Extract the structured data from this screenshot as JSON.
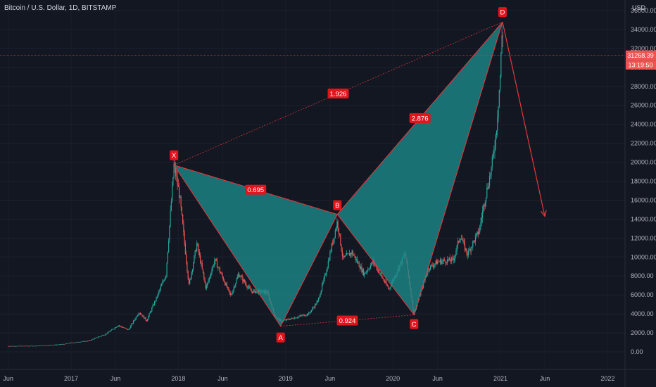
{
  "header": {
    "title": "Bitcoin / U.S. Dollar, 1D, BITSTAMP",
    "currency": "USD"
  },
  "price_axis": {
    "ticks": [
      "0.00",
      "2000.00",
      "4000.00",
      "6000.00",
      "8000.00",
      "10000.00",
      "12000.00",
      "14000.00",
      "16000.00",
      "18000.00",
      "20000.00",
      "22000.00",
      "24000.00",
      "26000.00",
      "28000.00",
      "30000.00",
      "32000.00",
      "34000.00",
      "36000.00"
    ],
    "last_price": "31268.39",
    "countdown": "13:19:50"
  },
  "time_axis": {
    "ticks": [
      "Jun",
      "2017",
      "Jun",
      "2018",
      "Jun",
      "2019",
      "Jun",
      "2020",
      "Jun",
      "2021",
      "Jun",
      "2022"
    ]
  },
  "colors": {
    "background": "#131722",
    "up": "#26a69a",
    "down": "#ef5350",
    "pattern_fill": "#1b8a8c",
    "pattern_line": "#e5383b",
    "label_bg": "#e5131b"
  },
  "chart_data": {
    "type": "candlestick",
    "title": "Bitcoin / U.S. Dollar, 1D, BITSTAMP",
    "ylim": [
      0,
      36000
    ],
    "x_range": [
      "2016-06-01",
      "2022-03-01"
    ],
    "price_path": [
      [
        "2016-06-01",
        600
      ],
      [
        "2016-09-01",
        620
      ],
      [
        "2016-12-01",
        780
      ],
      [
        "2017-01-01",
        950
      ],
      [
        "2017-03-01",
        1150
      ],
      [
        "2017-05-01",
        1900
      ],
      [
        "2017-06-10",
        2800
      ],
      [
        "2017-07-15",
        2300
      ],
      [
        "2017-08-20",
        4200
      ],
      [
        "2017-09-15",
        3300
      ],
      [
        "2017-10-20",
        5800
      ],
      [
        "2017-11-20",
        8200
      ],
      [
        "2017-12-17",
        19700
      ],
      [
        "2018-01-05",
        16500
      ],
      [
        "2018-02-06",
        7000
      ],
      [
        "2018-03-05",
        11400
      ],
      [
        "2018-04-05",
        6700
      ],
      [
        "2018-05-05",
        9700
      ],
      [
        "2018-06-28",
        5900
      ],
      [
        "2018-07-25",
        8200
      ],
      [
        "2018-09-05",
        6400
      ],
      [
        "2018-10-30",
        6300
      ],
      [
        "2018-11-25",
        3800
      ],
      [
        "2018-12-15",
        3200
      ],
      [
        "2019-01-20",
        3500
      ],
      [
        "2019-03-20",
        4000
      ],
      [
        "2019-04-20",
        5300
      ],
      [
        "2019-05-15",
        8000
      ],
      [
        "2019-06-26",
        13800
      ],
      [
        "2019-07-15",
        9800
      ],
      [
        "2019-08-15",
        10500
      ],
      [
        "2019-09-25",
        8200
      ],
      [
        "2019-10-26",
        9500
      ],
      [
        "2019-12-18",
        6600
      ],
      [
        "2020-02-12",
        10400
      ],
      [
        "2020-03-12",
        4000
      ],
      [
        "2020-04-30",
        8800
      ],
      [
        "2020-06-01",
        9500
      ],
      [
        "2020-07-25",
        9700
      ],
      [
        "2020-08-17",
        12300
      ],
      [
        "2020-09-10",
        10300
      ],
      [
        "2020-10-21",
        12800
      ],
      [
        "2020-11-05",
        15500
      ],
      [
        "2020-12-01",
        19300
      ],
      [
        "2020-12-17",
        23000
      ],
      [
        "2020-12-31",
        29000
      ],
      [
        "2021-01-08",
        34800
      ],
      [
        "2021-01-11",
        31268
      ]
    ],
    "harmonic_pattern": {
      "points": [
        {
          "label": "X",
          "date": "2017-12-17",
          "price": 19700
        },
        {
          "label": "A",
          "date": "2018-12-15",
          "price": 2700
        },
        {
          "label": "B",
          "date": "2019-06-26",
          "price": 14500
        },
        {
          "label": "C",
          "date": "2020-03-13",
          "price": 3900
        },
        {
          "label": "D",
          "date": "2021-01-08",
          "price": 34800
        }
      ],
      "ratios": [
        {
          "value": "1.926",
          "between": [
            "X",
            "D"
          ]
        },
        {
          "value": "0.695",
          "between": [
            "X",
            "B"
          ]
        },
        {
          "value": "2.876",
          "between": [
            "B",
            "D"
          ]
        },
        {
          "value": "0.924",
          "between": [
            "A",
            "C"
          ]
        }
      ]
    },
    "projection_arrow": {
      "from": {
        "date": "2021-01-08",
        "price": 34800
      },
      "to": {
        "date": "2021-06-01",
        "price": 14300
      }
    }
  }
}
